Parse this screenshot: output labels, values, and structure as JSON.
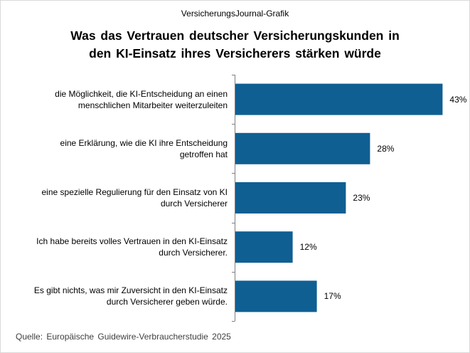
{
  "header": {
    "source_label": "VersicherungsJournal-Grafik",
    "title_lines": [
      "Was das Vertrauen deutscher Versicherungskunden in",
      "den KI-Einsatz ihres Versicherers stärken würde"
    ]
  },
  "chart_data": {
    "type": "bar",
    "orientation": "horizontal",
    "title": "Was das Vertrauen deutscher Versicherungskunden in den KI-Einsatz ihres Versicherers stärken würde",
    "categories": [
      [
        "die Möglichkeit, die KI-Entscheidung an einen",
        "menschlichen Mitarbeiter weiterzuleiten"
      ],
      [
        "eine Erklärung, wie die KI ihre Entscheidung",
        "getroffen hat"
      ],
      [
        "eine spezielle Regulierung für den Einsatz von KI",
        "durch Versicherer"
      ],
      [
        "Ich habe bereits volles Vertrauen in den KI-Einsatz",
        "durch Versicherer."
      ],
      [
        "Es gibt nichts, was mir Zuversicht in den KI-Einsatz",
        "durch Versicherer geben würde."
      ]
    ],
    "values": [
      43,
      28,
      23,
      12,
      17
    ],
    "value_labels": [
      "43%",
      "28%",
      "23%",
      "12%",
      "17%"
    ],
    "xlim": [
      0,
      50
    ],
    "unit": "%",
    "bar_color": "#0f5f93",
    "grid": false,
    "legend": "none"
  },
  "footer": {
    "source_note": "Quelle: Europäische Guidewire-Verbraucherstudie 2025"
  }
}
